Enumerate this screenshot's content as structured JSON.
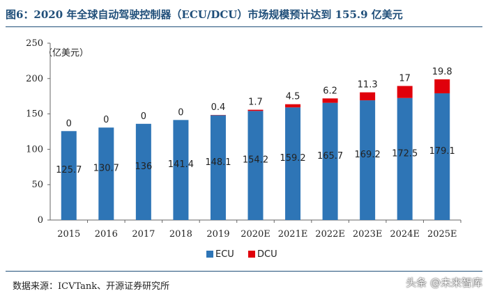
{
  "header": {
    "title": "图6：2020 年全球自动驾驶控制器（ECU/DCU）市场规模预计达到 155.9 亿美元"
  },
  "footer": {
    "source": "数据来源：ICVTank、开源证券研究所",
    "watermark": "头条 @未来智库"
  },
  "colors": {
    "ecu": "#2e75b6",
    "dcu": "#e0000b",
    "title": "#1f4e79"
  },
  "chart_data": {
    "type": "bar",
    "stacked": true,
    "categories": [
      "2015",
      "2016",
      "2017",
      "2018",
      "2019",
      "2020E",
      "2021E",
      "2022E",
      "2023E",
      "2024E",
      "2025E"
    ],
    "series": [
      {
        "name": "ECU",
        "values": [
          125.7,
          130.7,
          136,
          141.4,
          148.1,
          154.2,
          159.2,
          165.7,
          169.2,
          172.5,
          179.1
        ]
      },
      {
        "name": "DCU",
        "values": [
          0,
          0,
          0,
          0,
          0.4,
          1.7,
          4.5,
          6.2,
          11.3,
          17,
          19.8
        ]
      }
    ],
    "value_labels": {
      "ECU": [
        "125.7",
        "130.7",
        "136",
        "141.4",
        "148.1",
        "154.2",
        "159.2",
        "165.7",
        "169.2",
        "172.5",
        "179.1"
      ],
      "DCU": [
        "0",
        "0",
        "0",
        "0",
        "0.4",
        "1.7",
        "4.5",
        "6.2",
        "11.3",
        "17",
        "19.8"
      ]
    },
    "y_ticks": [
      "0",
      "50",
      "100",
      "150",
      "200",
      "250"
    ],
    "ylim": [
      0,
      250
    ],
    "ylabel": "（亿美元）",
    "xlabel": "",
    "legend": [
      "ECU",
      "DCU"
    ],
    "legend_position": "bottom-center",
    "grid": false
  }
}
